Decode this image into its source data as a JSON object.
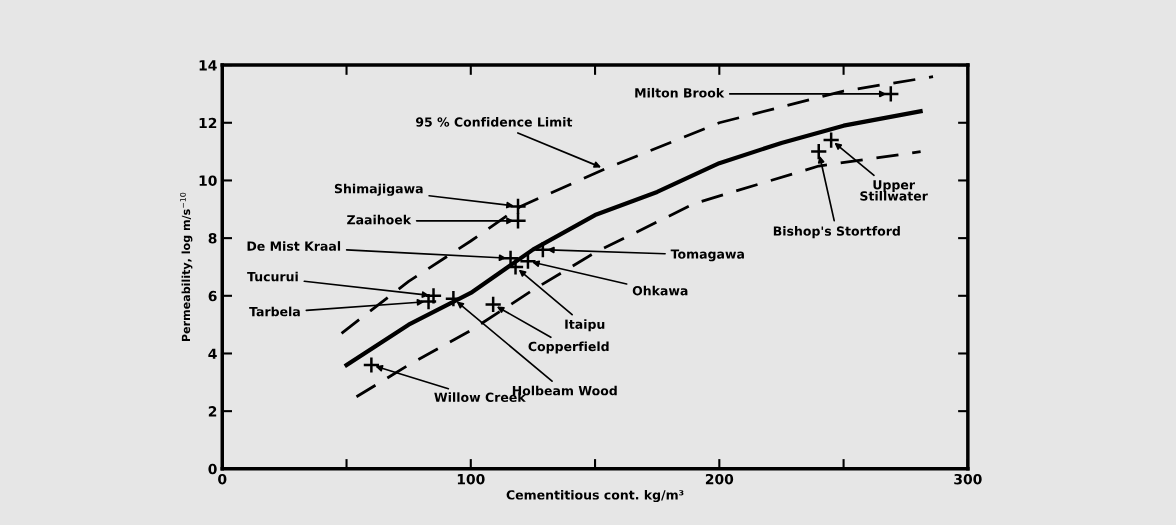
{
  "chart_data": {
    "type": "scatter",
    "xlabel": "Cementitious cont. kg/m³",
    "ylabel": "Permeability, log m/s$^{−10}$",
    "xlim": [
      0,
      300
    ],
    "ylim": [
      0,
      14
    ],
    "xticks": [
      0,
      {
        "value": 50,
        "label": null
      },
      100,
      {
        "value": 150,
        "label": null
      },
      200,
      {
        "value": 250,
        "label": null
      },
      300
    ],
    "yticks": [
      0,
      2,
      4,
      6,
      8,
      10,
      12,
      14
    ],
    "grid": false,
    "legend": false,
    "series": [
      {
        "color": "#000000",
        "marker": "cross",
        "x": [
          269,
          119,
          119,
          116,
          129,
          123,
          118,
          85,
          83,
          109,
          93,
          60,
          245,
          240
        ],
        "values": [
          13.0,
          9.1,
          8.6,
          7.3,
          7.6,
          7.2,
          7.0,
          6.0,
          5.8,
          5.7,
          5.9,
          3.6,
          11.4,
          11.0
        ]
      },
      {
        "type": "line",
        "color": "#000000",
        "line_style": "solid",
        "marker": "none",
        "x": [
          50,
          75,
          100,
          125,
          150,
          175,
          200,
          225,
          250,
          281
        ],
        "values": [
          3.6,
          5.0,
          6.1,
          7.6,
          8.8,
          9.6,
          10.6,
          11.3,
          11.9,
          12.4
        ]
      },
      {
        "type": "line",
        "color": "#000000",
        "line_style": "dashed",
        "marker": "none",
        "x": [
          48,
          75,
          100,
          120,
          154,
          200,
          250,
          286
        ],
        "values": [
          4.7,
          6.5,
          7.9,
          9.1,
          10.4,
          12.0,
          13.1,
          13.6
        ]
      },
      {
        "type": "line",
        "color": "#000000",
        "line_style": "dashed",
        "marker": "none",
        "x": [
          54,
          75,
          100,
          125,
          150,
          190,
          240,
          281
        ],
        "values": [
          2.5,
          3.6,
          4.8,
          6.2,
          7.5,
          9.2,
          10.5,
          11.0
        ]
      }
    ],
    "annotations": [
      {
        "text": "Milton Brook",
        "x": 269,
        "y": 13.0
      },
      {
        "text": "Shimajigawa",
        "x": 119,
        "y": 9.1
      },
      {
        "text": "Zaaihoek",
        "x": 119,
        "y": 8.6
      },
      {
        "text": "De Mist Kraal",
        "x": 116,
        "y": 7.3
      },
      {
        "text": "Tomagawa",
        "x": 129,
        "y": 7.6
      },
      {
        "text": "Ohkawa",
        "x": 123,
        "y": 7.2
      },
      {
        "text": "Itaipu",
        "x": 118,
        "y": 7.0
      },
      {
        "text": "Tucurui",
        "x": 85,
        "y": 6.0
      },
      {
        "text": "Tarbela",
        "x": 83,
        "y": 5.8
      },
      {
        "text": "Copperfield",
        "x": 109,
        "y": 5.7
      },
      {
        "text": "Holbeam Wood",
        "x": 93,
        "y": 5.9
      },
      {
        "text": "Willow Creek",
        "x": 60,
        "y": 3.6
      },
      {
        "text": "Upper\nStillwater",
        "x": 245,
        "y": 11.4
      },
      {
        "text": "Bishop's Stortford",
        "x": 240,
        "y": 11.0
      },
      {
        "text": "95 % Confidence Limit",
        "x": 154,
        "y": 10.4
      }
    ]
  }
}
